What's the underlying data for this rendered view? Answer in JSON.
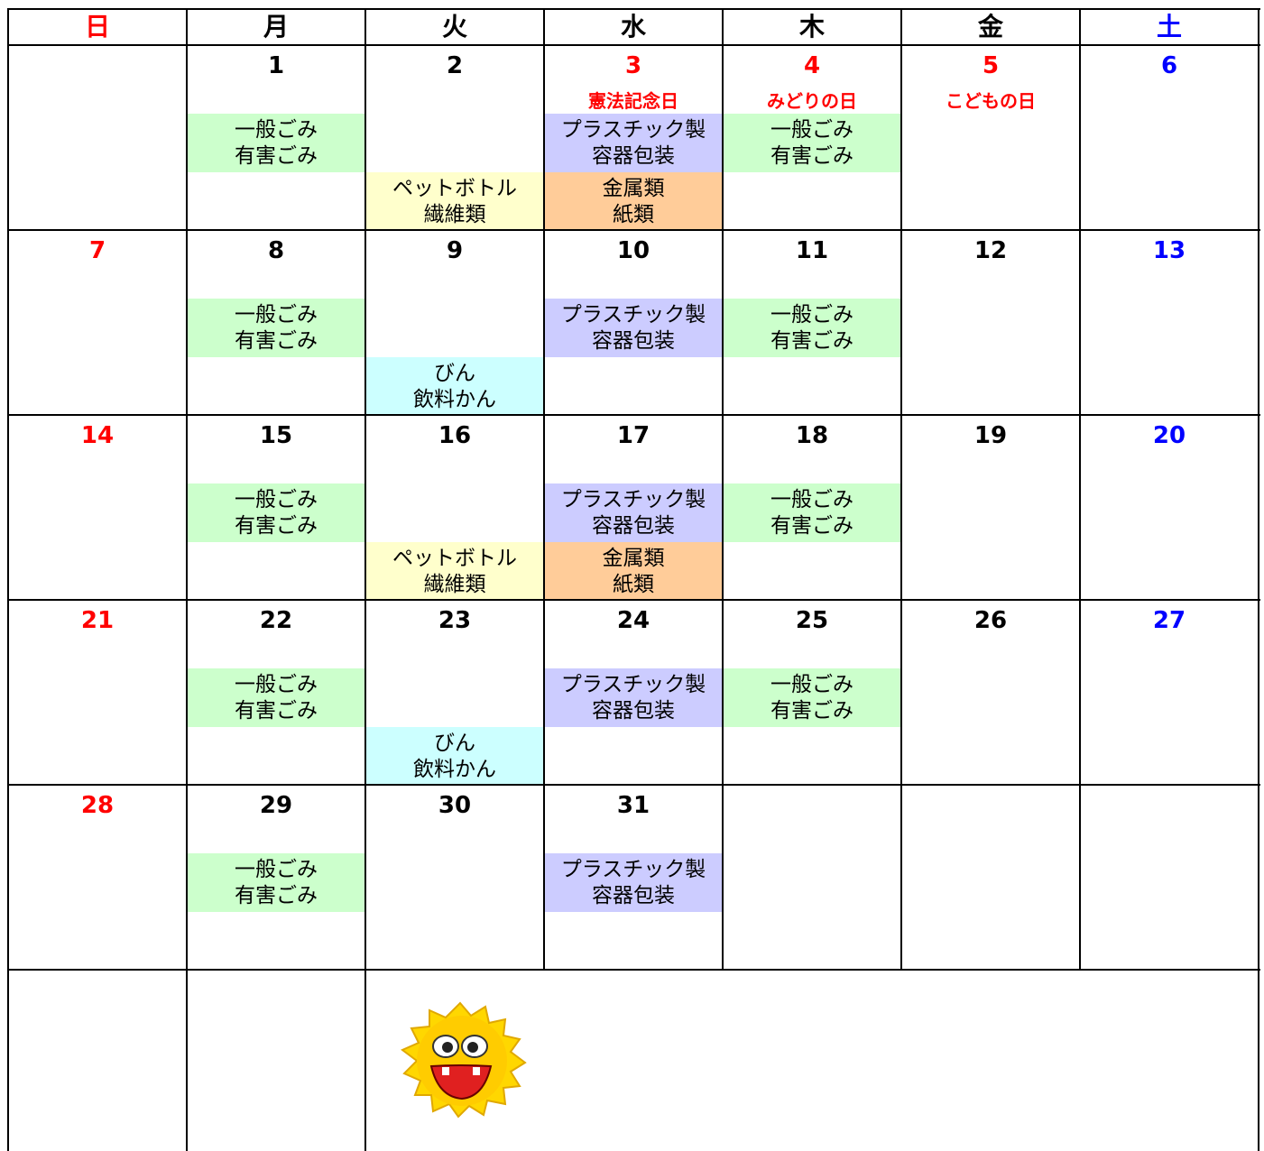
{
  "header": {
    "days": [
      {
        "text": "日",
        "color": "#ff0000"
      },
      {
        "text": "月",
        "color": "#000000"
      },
      {
        "text": "火",
        "color": "#000000"
      },
      {
        "text": "水",
        "color": "#000000"
      },
      {
        "text": "木",
        "color": "#000000"
      },
      {
        "text": "金",
        "color": "#000000"
      },
      {
        "text": "土",
        "color": "#0000ff"
      }
    ]
  },
  "weeks": [
    [
      null,
      {
        "date": 1,
        "color": "#000000",
        "slots": [
          {
            "lines": [
              "一般ごみ",
              "有害ごみ"
            ],
            "color": "#ccffcc"
          },
          null
        ]
      },
      {
        "date": 2,
        "color": "#000000",
        "slots": [
          null,
          {
            "lines": [
              "ペットボトル",
              "繊維類"
            ],
            "color": "#ffffcc"
          }
        ]
      },
      {
        "date": 3,
        "color": "#ff0000",
        "holiday": "憲法記念日",
        "slots": [
          {
            "lines": [
              "プラスチック製",
              "容器包装"
            ],
            "color": "#ccccff"
          },
          {
            "lines": [
              "金属類",
              "紙類"
            ],
            "color": "#ffcc99"
          }
        ]
      },
      {
        "date": 4,
        "color": "#ff0000",
        "holiday": "みどりの日",
        "slots": [
          {
            "lines": [
              "一般ごみ",
              "有害ごみ"
            ],
            "color": "#ccffcc"
          },
          null
        ]
      },
      {
        "date": 5,
        "color": "#ff0000",
        "holiday": "こどもの日"
      },
      {
        "date": 6,
        "color": "#0000ff"
      }
    ],
    [
      {
        "date": 7,
        "color": "#ff0000"
      },
      {
        "date": 8,
        "color": "#000000",
        "slots": [
          {
            "lines": [
              "一般ごみ",
              "有害ごみ"
            ],
            "color": "#ccffcc"
          },
          null
        ]
      },
      {
        "date": 9,
        "color": "#000000",
        "slots": [
          null,
          {
            "lines": [
              "びん",
              "飲料かん"
            ],
            "color": "#ccffff"
          }
        ]
      },
      {
        "date": 10,
        "color": "#000000",
        "slots": [
          {
            "lines": [
              "プラスチック製",
              "容器包装"
            ],
            "color": "#ccccff"
          },
          null
        ]
      },
      {
        "date": 11,
        "color": "#000000",
        "slots": [
          {
            "lines": [
              "一般ごみ",
              "有害ごみ"
            ],
            "color": "#ccffcc"
          },
          null
        ]
      },
      {
        "date": 12,
        "color": "#000000"
      },
      {
        "date": 13,
        "color": "#0000ff"
      }
    ],
    [
      {
        "date": 14,
        "color": "#ff0000"
      },
      {
        "date": 15,
        "color": "#000000",
        "slots": [
          {
            "lines": [
              "一般ごみ",
              "有害ごみ"
            ],
            "color": "#ccffcc"
          },
          null
        ]
      },
      {
        "date": 16,
        "color": "#000000",
        "slots": [
          null,
          {
            "lines": [
              "ペットボトル",
              "繊維類"
            ],
            "color": "#ffffcc"
          }
        ]
      },
      {
        "date": 17,
        "color": "#000000",
        "slots": [
          {
            "lines": [
              "プラスチック製",
              "容器包装"
            ],
            "color": "#ccccff"
          },
          {
            "lines": [
              "金属類",
              "紙類"
            ],
            "color": "#ffcc99"
          }
        ]
      },
      {
        "date": 18,
        "color": "#000000",
        "slots": [
          {
            "lines": [
              "一般ごみ",
              "有害ごみ"
            ],
            "color": "#ccffcc"
          },
          null
        ]
      },
      {
        "date": 19,
        "color": "#000000"
      },
      {
        "date": 20,
        "color": "#0000ff"
      }
    ],
    [
      {
        "date": 21,
        "color": "#ff0000"
      },
      {
        "date": 22,
        "color": "#000000",
        "slots": [
          {
            "lines": [
              "一般ごみ",
              "有害ごみ"
            ],
            "color": "#ccffcc"
          },
          null
        ]
      },
      {
        "date": 23,
        "color": "#000000",
        "slots": [
          null,
          {
            "lines": [
              "びん",
              "飲料かん"
            ],
            "color": "#ccffff"
          }
        ]
      },
      {
        "date": 24,
        "color": "#000000",
        "slots": [
          {
            "lines": [
              "プラスチック製",
              "容器包装"
            ],
            "color": "#ccccff"
          },
          null
        ]
      },
      {
        "date": 25,
        "color": "#000000",
        "slots": [
          {
            "lines": [
              "一般ごみ",
              "有害ごみ"
            ],
            "color": "#ccffcc"
          },
          null
        ]
      },
      {
        "date": 26,
        "color": "#000000"
      },
      {
        "date": 27,
        "color": "#0000ff"
      }
    ],
    [
      {
        "date": 28,
        "color": "#ff0000"
      },
      {
        "date": 29,
        "color": "#000000",
        "slots": [
          {
            "lines": [
              "一般ごみ",
              "有害ごみ"
            ],
            "color": "#ccffcc"
          },
          null
        ]
      },
      {
        "date": 30,
        "color": "#000000"
      },
      {
        "date": 31,
        "color": "#000000",
        "slots": [
          {
            "lines": [
              "プラスチック製",
              "容器包装"
            ],
            "color": "#ccccff"
          },
          null
        ]
      },
      null,
      null,
      null
    ]
  ]
}
